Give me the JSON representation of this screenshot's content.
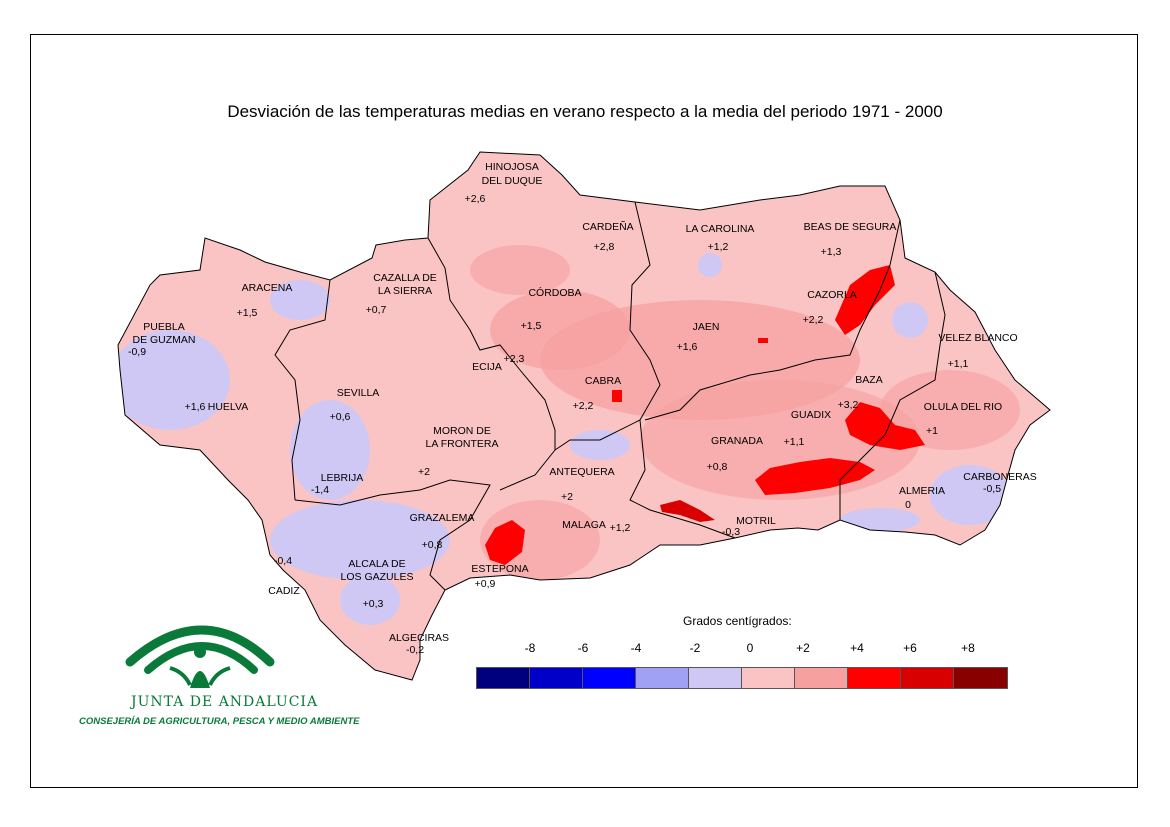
{
  "title": "Desviación de las temperaturas medias en verano respecto a la media del periodo 1971 - 2000",
  "legend": {
    "title": "Grados centígrados:",
    "ticks": [
      "-8",
      "-6",
      "-4",
      "-2",
      "0",
      "+2",
      "+4",
      "+6",
      "+8"
    ],
    "colors": [
      "#00007f",
      "#0000c8",
      "#0000ff",
      "#a0a0f4",
      "#cfc8f4",
      "#fbc4c4",
      "#f7a0a0",
      "#ff0000",
      "#d80000",
      "#880000"
    ]
  },
  "stations": [
    {
      "name": "HINOJOSA",
      "name2": "DEL DUQUE",
      "value": "+2,6"
    },
    {
      "name": "CARDEÑA",
      "value": "+2,8"
    },
    {
      "name": "LA CAROLINA",
      "value": "+1,2"
    },
    {
      "name": "BEAS DE SEGURA",
      "value": "+1,3"
    },
    {
      "name": "CAZALLA DE",
      "name2": "LA SIERRA",
      "value": "+0,7"
    },
    {
      "name": "ARACENA",
      "value": "+1,5"
    },
    {
      "name": "CÓRDOBA",
      "value": "+1,5"
    },
    {
      "name": "CAZORLA",
      "value": "+2,2"
    },
    {
      "name": "PUEBLA",
      "name2": "DE GUZMAN",
      "value": "-0,9"
    },
    {
      "name": "JAEN",
      "value": "+1,6"
    },
    {
      "name": "VELEZ BLANCO",
      "value": "+1,1"
    },
    {
      "name": "ECIJA",
      "value": "+2,3"
    },
    {
      "name": "SEVILLA",
      "value": "+0,6"
    },
    {
      "name": "CABRA",
      "value": "+2,2"
    },
    {
      "name": "BAZA",
      "value": "+3,2"
    },
    {
      "name": "HUELVA",
      "value": "+1,6"
    },
    {
      "name": "OLULA DEL RIO",
      "value": "+1"
    },
    {
      "name": "GUADIX",
      "value": "+1,1"
    },
    {
      "name": "MORON DE",
      "name2": "LA FRONTERA",
      "value": "+2"
    },
    {
      "name": "GRANADA",
      "value": "+0,8"
    },
    {
      "name": "LEBRIJA",
      "value": "-1,4"
    },
    {
      "name": "ANTEQUERA",
      "value": "+2"
    },
    {
      "name": "CARBONERAS",
      "value": "-0,5"
    },
    {
      "name": "ALMERIA",
      "value": "0"
    },
    {
      "name": "GRAZALEMA",
      "value": "+0,8"
    },
    {
      "name": "MALAGA",
      "value": "+1,2"
    },
    {
      "name": "MOTRIL",
      "value": "-0,3"
    },
    {
      "name": "ALCALA DE",
      "name2": "LOS GAZULES",
      "value": "+0,3"
    },
    {
      "name": "ESTEPONA",
      "value": "+0,9"
    },
    {
      "name": "CADIZ",
      "value": "-0,4"
    },
    {
      "name": "ALGECIRAS",
      "value": "-0,2"
    }
  ],
  "logo": {
    "name": "JUNTA DE ANDALUCIA",
    "subtitle": "CONSEJERÍA DE AGRICULTURA, PESCA Y MEDIO AMBIENTE",
    "color": "#0a7a3a"
  }
}
